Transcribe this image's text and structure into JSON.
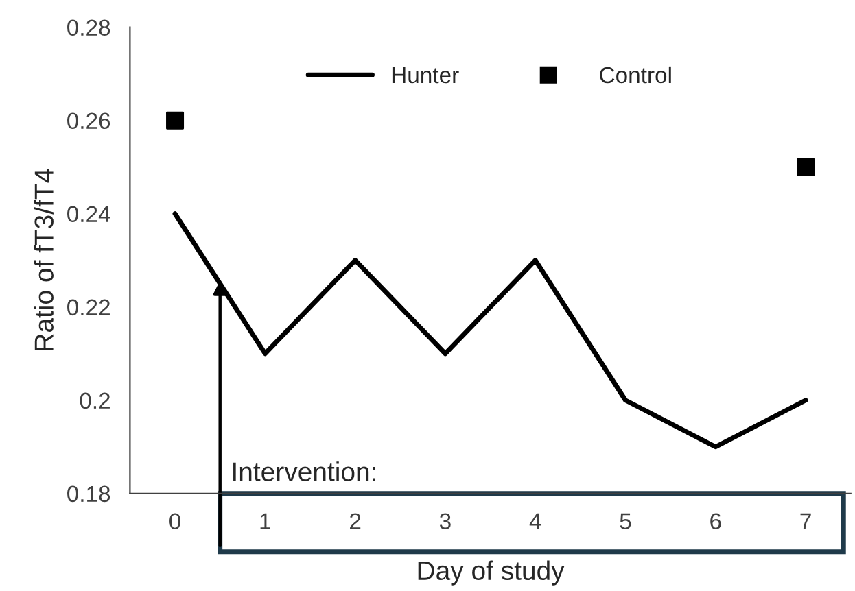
{
  "chart_data": {
    "type": "line",
    "ylabel": "Ratio of fT3/fT4",
    "xlabel": "Day of study",
    "categories": [
      "0",
      "1",
      "2",
      "3",
      "4",
      "5",
      "6",
      "7"
    ],
    "series": [
      {
        "name": "Hunter",
        "type": "line",
        "color": "#000000",
        "marker": "none",
        "values": [
          0.24,
          0.21,
          0.23,
          0.21,
          0.23,
          0.2,
          0.19,
          0.2
        ]
      },
      {
        "name": "Control",
        "type": "scatter",
        "color": "#000000",
        "marker": "square",
        "values": [
          0.26,
          null,
          null,
          null,
          null,
          null,
          null,
          0.25
        ]
      }
    ],
    "ylim": [
      0.18,
      0.28
    ],
    "yticks": [
      0.18,
      {
        "value": 0.2,
        "label": "0.2"
      },
      0.22,
      0.24,
      0.26,
      0.28
    ],
    "grid": false,
    "legend": "top",
    "annotations": [
      "Intervention:"
    ]
  }
}
